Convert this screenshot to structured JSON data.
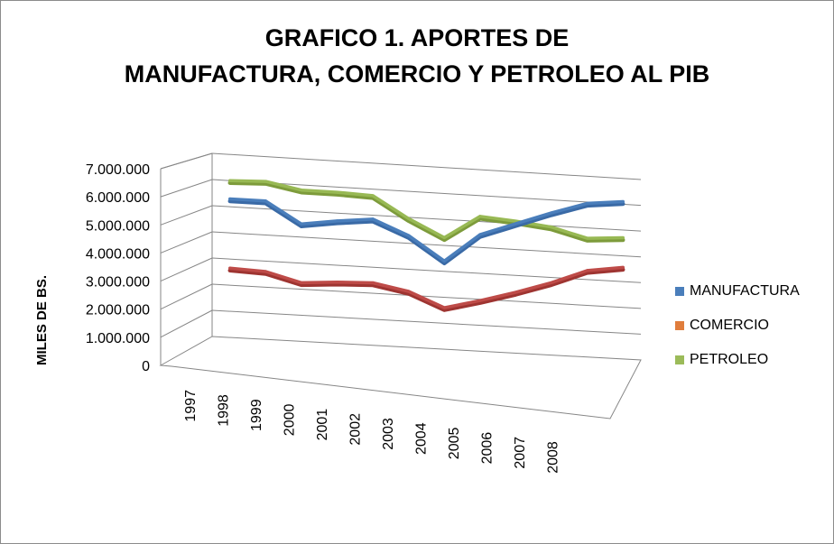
{
  "chart_data": {
    "type": "line",
    "title_line1": "GRAFICO 1. APORTES DE",
    "title_line2": "MANUFACTURA, COMERCIO Y PETROLEO AL PIB",
    "ylabel": "MILES DE BS.",
    "xlabel": "",
    "categories": [
      "1997",
      "1998",
      "1999",
      "2000",
      "2001",
      "2002",
      "2003",
      "2004",
      "2005",
      "2006",
      "2007",
      "2008"
    ],
    "yticks": [
      "0",
      "1.000.000",
      "2.000.000",
      "3.000.000",
      "4.000.000",
      "5.000.000",
      "6.000.000",
      "7.000.000"
    ],
    "ylim": [
      0,
      7000000
    ],
    "grid": true,
    "legend_position": "right",
    "series": [
      {
        "name": "MANUFACTURA",
        "color": "#4a7ebb",
        "values": [
          5300000,
          5300000,
          4500000,
          4700000,
          4850000,
          4300000,
          3400000,
          4500000,
          5000000,
          5500000,
          5950000,
          6100000
        ]
      },
      {
        "name": "COMERCIO",
        "color": "#be4b48",
        "values": [
          2650000,
          2600000,
          2250000,
          2350000,
          2400000,
          2150000,
          1600000,
          1950000,
          2350000,
          2800000,
          3350000,
          3550000
        ]
      },
      {
        "name": "PETROLEO",
        "color": "#98b954",
        "values": [
          6000000,
          6050000,
          5800000,
          5800000,
          5750000,
          4950000,
          4300000,
          5200000,
          5100000,
          4950000,
          4600000,
          4700000
        ]
      }
    ]
  }
}
